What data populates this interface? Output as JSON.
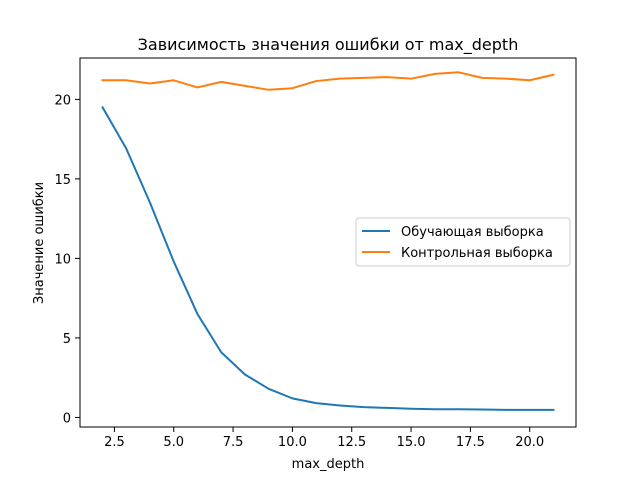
{
  "chart_data": {
    "type": "line",
    "title": "Зависимость значения ошибки от max_depth",
    "xlabel": "max_depth",
    "ylabel": "Значение ошибки",
    "xlim": [
      1.05,
      21.95
    ],
    "ylim": [
      -0.6,
      22.6
    ],
    "x_ticks": [
      2.5,
      5.0,
      7.5,
      10.0,
      12.5,
      15.0,
      17.5,
      20.0
    ],
    "x_tick_labels": [
      "2.5",
      "5.0",
      "7.5",
      "10.0",
      "12.5",
      "15.0",
      "17.5",
      "20.0"
    ],
    "y_ticks": [
      0,
      5,
      10,
      15,
      20
    ],
    "y_tick_labels": [
      "0",
      "5",
      "10",
      "15",
      "20"
    ],
    "grid": false,
    "legend_position": "center-right",
    "x": [
      2,
      3,
      4,
      5,
      6,
      7,
      8,
      9,
      10,
      11,
      12,
      13,
      14,
      15,
      16,
      17,
      18,
      19,
      20,
      21
    ],
    "series": [
      {
        "name": "Обучающая выборка",
        "color": "#1f77b4",
        "values": [
          19.5,
          16.9,
          13.5,
          9.8,
          6.5,
          4.1,
          2.7,
          1.8,
          1.2,
          0.9,
          0.75,
          0.65,
          0.6,
          0.55,
          0.52,
          0.52,
          0.5,
          0.48,
          0.48,
          0.48
        ]
      },
      {
        "name": "Контрольная выборка",
        "color": "#ff7f0e",
        "values": [
          21.2,
          21.2,
          21.0,
          21.2,
          20.75,
          21.1,
          20.85,
          20.6,
          20.7,
          21.15,
          21.3,
          21.35,
          21.4,
          21.3,
          21.6,
          21.7,
          21.35,
          21.3,
          21.2,
          21.55
        ]
      }
    ]
  }
}
